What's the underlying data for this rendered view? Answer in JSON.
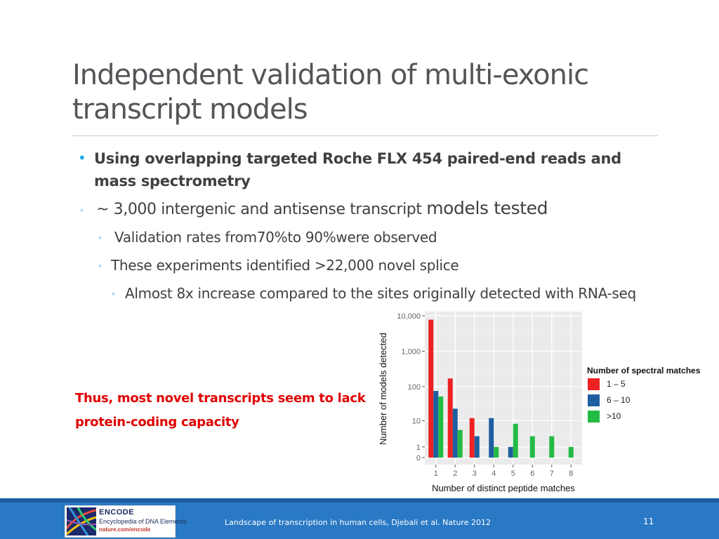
{
  "slide": {
    "title": "Independent validation of multi-exonic transcript models",
    "bullets": {
      "level1": "Using overlapping targeted Roche FLX 454 paired-end reads and mass spectrometry",
      "level2_prefix": "~ 3,000 intergenic and antisense transcript ",
      "level2_suffix": "models tested",
      "level3_a": "Validation rates from70%to 90%were observed",
      "level3_b": "These experiments identified >22,000 novel splice",
      "level4": "Almost 8x increase compared to the sites originally detected with RNA-seq"
    },
    "bullet_marks": {
      "level1": "•",
      "level2": "◦",
      "level3": "◦",
      "level4": "◦"
    },
    "conclusion": "Thus, most novel transcripts seem to lack protein-coding capacity",
    "colors": {
      "title": "#555559",
      "bullet_mark": "#29a9e0",
      "conclusion": "#e00000",
      "footer": "#2a79c4"
    }
  },
  "chart_data": {
    "type": "bar",
    "x": [
      1,
      2,
      3,
      4,
      5,
      6,
      7,
      8
    ],
    "xtick_labels": [
      "1",
      "2",
      "3",
      "4",
      "5",
      "6",
      "7",
      "8"
    ],
    "ytick_labels": [
      "10,000",
      "1,000",
      "100",
      "10",
      "1",
      "0"
    ],
    "ytick_values": [
      10000,
      1000,
      100,
      10,
      1,
      0
    ],
    "xlabel": "Number of distinct peptide matches",
    "ylabel": "Number of models detected",
    "yscale": "log",
    "ylim": [
      0,
      10000
    ],
    "grid": true,
    "legend": {
      "title": "Number of spectral matches",
      "placement": "right"
    },
    "series": [
      {
        "name": "1 – 5",
        "color": "#ee2222",
        "values": [
          7800,
          170,
          12,
          null,
          null,
          null,
          null,
          null
        ]
      },
      {
        "name": "6 – 10",
        "color": "#1f5fa0",
        "values": [
          75,
          23,
          3,
          12,
          1,
          null,
          null,
          null
        ]
      },
      {
        "name": ">10",
        "color": "#22bb44",
        "values": [
          52,
          5,
          null,
          1,
          8,
          3,
          3,
          1
        ]
      }
    ]
  },
  "footer": {
    "logo_name": "ENCODE",
    "logo_subtitle": "Encyclopedia of DNA Elements",
    "logo_url": "nature.com/encode",
    "citation": "Landscape of transcription in human cells, Djebali et al. Nature 2012",
    "slide_number": "11"
  }
}
